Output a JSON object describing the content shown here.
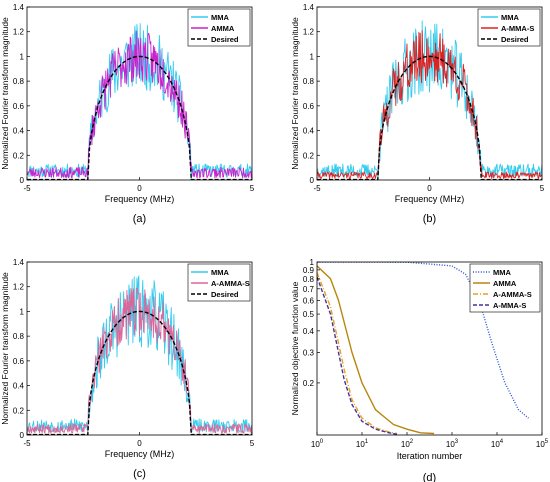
{
  "chart_data": [
    {
      "type": "line",
      "caption": "(a)",
      "xlabel": "Frequency (MHz)",
      "ylabel": "Normalized Fourier transform magnitude",
      "xlim": [
        -5,
        5
      ],
      "ylim": [
        0,
        1.4
      ],
      "xticks": [
        "-5",
        "0",
        "5"
      ],
      "yticks": [
        "0",
        "0.2",
        "0.4",
        "0.6",
        "0.8",
        "1",
        "1.2",
        "1.4"
      ],
      "grid": false,
      "legend_position": "top-right",
      "series": [
        {
          "name": "MMA",
          "color": "#33ccee",
          "style": "solid",
          "noise": 0.18,
          "floor": 0.1,
          "seed": 11
        },
        {
          "name": "AMMA",
          "color": "#cc22cc",
          "style": "solid",
          "noise": 0.14,
          "floor": 0.08,
          "seed": 23
        },
        {
          "name": "Desired",
          "color": "#000000",
          "style": "dashed",
          "support": [
            -2.3,
            2.3
          ],
          "peak": 1.0
        }
      ]
    },
    {
      "type": "line",
      "caption": "(b)",
      "xlabel": "Frequency (MHz)",
      "ylabel": "Normalized Fourier transform magnitude",
      "xlim": [
        -5,
        5
      ],
      "ylim": [
        0,
        1.4
      ],
      "xticks": [
        "-5",
        "0",
        "5"
      ],
      "yticks": [
        "0",
        "0.2",
        "0.4",
        "0.6",
        "0.8",
        "1",
        "1.2",
        "1.4"
      ],
      "grid": false,
      "legend_position": "top-right",
      "series": [
        {
          "name": "MMA",
          "color": "#33ccee",
          "style": "solid",
          "noise": 0.2,
          "floor": 0.1,
          "seed": 37
        },
        {
          "name": "A-MMA-S",
          "color": "#dd2222",
          "style": "solid",
          "noise": 0.15,
          "floor": 0.05,
          "seed": 41
        },
        {
          "name": "Desired",
          "color": "#000000",
          "style": "dashed",
          "support": [
            -2.3,
            2.3
          ],
          "peak": 1.0
        }
      ]
    },
    {
      "type": "line",
      "caption": "(c)",
      "xlabel": "Frequency (MHz)",
      "ylabel": "Normalized Fourier transform magnitude",
      "xlim": [
        -5,
        5
      ],
      "ylim": [
        0,
        1.4
      ],
      "xticks": [
        "-5",
        "0",
        "5"
      ],
      "yticks": [
        "0",
        "0.2",
        "0.4",
        "0.6",
        "0.8",
        "1",
        "1.2",
        "1.4"
      ],
      "grid": false,
      "legend_position": "top-right",
      "series": [
        {
          "name": "MMA",
          "color": "#33ccee",
          "style": "solid",
          "noise": 0.2,
          "floor": 0.1,
          "seed": 53
        },
        {
          "name": "A-AMMA-S",
          "color": "#dd6699",
          "style": "solid",
          "noise": 0.14,
          "floor": 0.07,
          "seed": 67
        },
        {
          "name": "Desired",
          "color": "#000000",
          "style": "dashed",
          "support": [
            -2.3,
            2.3
          ],
          "peak": 1.0
        }
      ]
    },
    {
      "type": "line",
      "caption": "(d)",
      "xlabel": "Iteration number",
      "ylabel": "Normalized objective function value",
      "xscale": "log",
      "yscale": "log",
      "xlim": [
        1,
        100000
      ],
      "ylim": [
        0.1,
        1.0
      ],
      "xticks": [
        {
          "base": "10",
          "exp": "0"
        },
        {
          "base": "10",
          "exp": "1"
        },
        {
          "base": "10",
          "exp": "2"
        },
        {
          "base": "10",
          "exp": "3"
        },
        {
          "base": "10",
          "exp": "4"
        },
        {
          "base": "10",
          "exp": "5"
        }
      ],
      "yticks": [
        "0.2",
        "0.3",
        "0.4",
        "0.5",
        "0.6",
        "0.7",
        "0.8",
        "0.9",
        "1"
      ],
      "ytick_values": [
        0.2,
        0.3,
        0.4,
        0.5,
        0.6,
        0.7,
        0.8,
        0.9,
        1.0
      ],
      "grid": false,
      "legend_position": "top-right",
      "series": [
        {
          "name": "MMA",
          "color": "#2255cc",
          "style": "dotted",
          "x": [
            1,
            10,
            100,
            1000,
            2000,
            4000,
            8000,
            15000,
            30000,
            50000
          ],
          "y": [
            1.0,
            1.0,
            0.998,
            0.95,
            0.85,
            0.6,
            0.33,
            0.2,
            0.14,
            0.125
          ]
        },
        {
          "name": "AMMA",
          "color": "#b8860b",
          "style": "solid",
          "x": [
            1,
            2,
            3,
            4,
            6,
            10,
            20,
            50,
            100,
            200,
            400
          ],
          "y": [
            0.95,
            0.8,
            0.6,
            0.45,
            0.3,
            0.2,
            0.14,
            0.115,
            0.108,
            0.103,
            0.102
          ]
        },
        {
          "name": "A-AMMA-S",
          "color": "#e8a020",
          "style": "dashdot",
          "x": [
            1,
            2,
            3,
            4,
            6,
            10,
            20,
            40,
            60
          ],
          "y": [
            0.87,
            0.55,
            0.34,
            0.24,
            0.16,
            0.125,
            0.11,
            0.104,
            0.102
          ]
        },
        {
          "name": "A-MMA-S",
          "color": "#443399",
          "style": "dashed",
          "x": [
            1,
            2,
            3,
            4,
            6,
            10,
            20,
            40,
            60
          ],
          "y": [
            0.82,
            0.5,
            0.3,
            0.21,
            0.15,
            0.12,
            0.108,
            0.103,
            0.101
          ]
        }
      ]
    }
  ]
}
